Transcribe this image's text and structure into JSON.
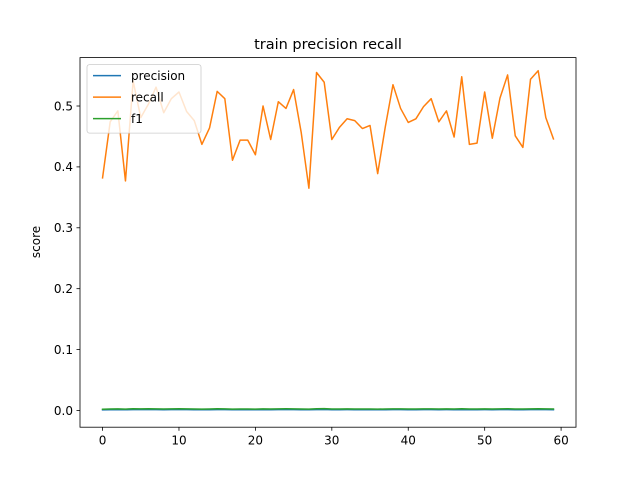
{
  "chart_data": {
    "type": "line",
    "title": "train precision recall",
    "xlabel": "",
    "ylabel": "score",
    "xlim": [
      -2.95,
      61.95
    ],
    "ylim": [
      -0.0275,
      0.5795
    ],
    "xticks": [
      0,
      10,
      20,
      30,
      40,
      50,
      60
    ],
    "xtick_labels": [
      "0",
      "10",
      "20",
      "30",
      "40",
      "50",
      "60"
    ],
    "yticks": [
      0.0,
      0.1,
      0.2,
      0.3,
      0.4,
      0.5
    ],
    "ytick_labels": [
      "0.0",
      "0.1",
      "0.2",
      "0.3",
      "0.4",
      "0.5"
    ],
    "grid": false,
    "legend_position": "top-left",
    "x": [
      0,
      1,
      2,
      3,
      4,
      5,
      6,
      7,
      8,
      9,
      10,
      11,
      12,
      13,
      14,
      15,
      16,
      17,
      18,
      19,
      20,
      21,
      22,
      23,
      24,
      25,
      26,
      27,
      28,
      29,
      30,
      31,
      32,
      33,
      34,
      35,
      36,
      37,
      38,
      39,
      40,
      41,
      42,
      43,
      44,
      45,
      46,
      47,
      48,
      49,
      50,
      51,
      52,
      53,
      54,
      55,
      56,
      57,
      58,
      59
    ],
    "series": [
      {
        "name": "precision",
        "color": "#1f77b4",
        "values": [
          0.001,
          0.0012,
          0.0013,
          0.0011,
          0.0014,
          0.0013,
          0.0014,
          0.0013,
          0.0012,
          0.0013,
          0.0014,
          0.0013,
          0.0012,
          0.0011,
          0.0012,
          0.0014,
          0.0013,
          0.0011,
          0.0012,
          0.0012,
          0.0011,
          0.0013,
          0.0012,
          0.0013,
          0.0014,
          0.0013,
          0.0012,
          0.0011,
          0.0014,
          0.0015,
          0.0012,
          0.0012,
          0.0013,
          0.0012,
          0.0012,
          0.0012,
          0.0011,
          0.0012,
          0.0013,
          0.0013,
          0.0012,
          0.0012,
          0.0013,
          0.0013,
          0.0012,
          0.0013,
          0.0012,
          0.0014,
          0.0012,
          0.0012,
          0.0013,
          0.0012,
          0.0013,
          0.0014,
          0.0012,
          0.0012,
          0.0013,
          0.0014,
          0.0013,
          0.0012
        ]
      },
      {
        "name": "recall",
        "color": "#ff7f0e",
        "values": [
          0.382,
          0.474,
          0.492,
          0.377,
          0.541,
          0.481,
          0.503,
          0.531,
          0.489,
          0.512,
          0.523,
          0.491,
          0.476,
          0.437,
          0.464,
          0.524,
          0.512,
          0.411,
          0.444,
          0.444,
          0.42,
          0.5,
          0.445,
          0.507,
          0.496,
          0.527,
          0.456,
          0.365,
          0.555,
          0.539,
          0.445,
          0.465,
          0.479,
          0.476,
          0.463,
          0.468,
          0.389,
          0.466,
          0.535,
          0.496,
          0.473,
          0.479,
          0.499,
          0.512,
          0.474,
          0.492,
          0.449,
          0.548,
          0.437,
          0.439,
          0.523,
          0.447,
          0.513,
          0.551,
          0.451,
          0.432,
          0.544,
          0.558,
          0.481,
          0.446
        ]
      },
      {
        "name": "f1",
        "color": "#2ca02c",
        "values": [
          0.002,
          0.0024,
          0.0025,
          0.0022,
          0.0028,
          0.0025,
          0.0027,
          0.0026,
          0.0024,
          0.0026,
          0.0027,
          0.0025,
          0.0024,
          0.0022,
          0.0024,
          0.0027,
          0.0026,
          0.0022,
          0.0024,
          0.0024,
          0.0022,
          0.0026,
          0.0024,
          0.0026,
          0.0027,
          0.0026,
          0.0024,
          0.0021,
          0.0028,
          0.003,
          0.0024,
          0.0024,
          0.0026,
          0.0024,
          0.0024,
          0.0024,
          0.0022,
          0.0024,
          0.0026,
          0.0026,
          0.0024,
          0.0024,
          0.0026,
          0.0026,
          0.0024,
          0.0026,
          0.0024,
          0.0028,
          0.0024,
          0.0024,
          0.0026,
          0.0024,
          0.0026,
          0.0028,
          0.0024,
          0.0024,
          0.0026,
          0.0028,
          0.0026,
          0.0024
        ]
      }
    ]
  }
}
